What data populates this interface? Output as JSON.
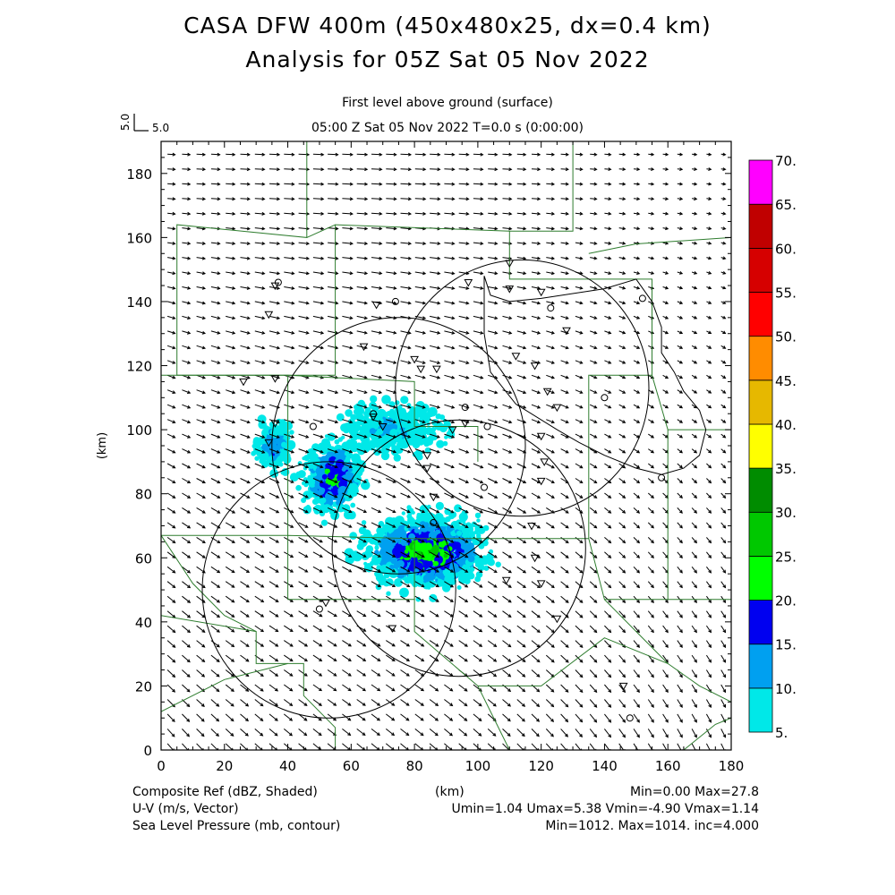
{
  "header": {
    "title_line1": "CASA DFW 400m (450x480x25, dx=0.4 km)",
    "title_line2": "Analysis for 05Z Sat 05 Nov 2022",
    "subtitle": "First level above ground (surface)",
    "timestamp": "05:00 Z Sat 05 Nov 2022    T=0.0 s (0:00:00)",
    "ref_vector_label": "5.0",
    "ref_vector_rotated_label": "5.0"
  },
  "footer": {
    "field1": "Composite Ref (dBZ, Shaded)",
    "field2": "U-V (m/s, Vector)",
    "field3": "Sea Level Pressure (mb, contour)",
    "xunit": "(km)",
    "stats1": "Min=0.00 Max=27.8",
    "stats2": "Umin=1.04 Umax=5.38 Vmin=-4.90 Vmax=1.14",
    "stats3": "Min=1012. Max=1014. inc=4.000"
  },
  "chart_data": {
    "type": "heatmap",
    "xlabel": "(km)",
    "ylabel": "(km)",
    "xlim": [
      0,
      180
    ],
    "ylim": [
      0,
      190
    ],
    "xticks": [
      "0",
      "20",
      "40",
      "60",
      "80",
      "100",
      "120",
      "140",
      "160",
      "180"
    ],
    "yticks": [
      "0",
      "20",
      "40",
      "60",
      "80",
      "100",
      "120",
      "140",
      "160",
      "180"
    ],
    "colorbar": {
      "labels": [
        "5.",
        "10.",
        "15.",
        "20.",
        "25.",
        "30.",
        "35.",
        "40.",
        "45.",
        "50.",
        "55.",
        "60.",
        "65.",
        "70."
      ],
      "colors": [
        "#00e8e8",
        "#00a0f0",
        "#0000f0",
        "#00ff00",
        "#00c800",
        "#008c00",
        "#ffff00",
        "#e6b800",
        "#ff8c00",
        "#ff0000",
        "#d60000",
        "#c00000",
        "#ff00ff"
      ]
    },
    "radar_rings": [
      {
        "cx": 75,
        "cy": 95,
        "r": 40
      },
      {
        "cx": 114,
        "cy": 113,
        "r": 40
      },
      {
        "cx": 53,
        "cy": 50,
        "r": 40
      },
      {
        "cx": 94,
        "cy": 63,
        "r": 40
      }
    ],
    "echo_clusters": [
      {
        "x": 54,
        "y": 85,
        "sx": 5,
        "sy": 6,
        "peak": 22
      },
      {
        "x": 84,
        "y": 62,
        "sx": 10,
        "sy": 6,
        "peak": 27.8
      },
      {
        "x": 36,
        "y": 95,
        "sx": 3,
        "sy": 4,
        "peak": 16
      },
      {
        "x": 73,
        "y": 100,
        "sx": 8,
        "sy": 4,
        "peak": 12
      }
    ],
    "wind_field": {
      "u_range": [
        1.04,
        5.38
      ],
      "v_range": [
        -4.9,
        1.14
      ]
    },
    "pressure_contour_mb": [
      1012,
      1014
    ],
    "stations": [
      [
        36,
        102
      ],
      [
        34,
        96
      ],
      [
        36,
        116
      ],
      [
        26,
        115
      ],
      [
        34,
        136
      ],
      [
        36,
        145
      ],
      [
        64,
        126
      ],
      [
        67,
        104
      ],
      [
        70,
        101
      ],
      [
        68,
        139
      ],
      [
        82,
        119
      ],
      [
        87,
        119
      ],
      [
        80,
        122
      ],
      [
        97,
        146
      ],
      [
        120,
        143
      ],
      [
        110,
        152
      ],
      [
        110,
        144
      ],
      [
        122,
        112
      ],
      [
        118,
        120
      ],
      [
        112,
        123
      ],
      [
        128,
        131
      ],
      [
        125,
        107
      ],
      [
        120,
        98
      ],
      [
        121,
        90
      ],
      [
        120,
        84
      ],
      [
        117,
        70
      ],
      [
        109,
        53
      ],
      [
        120,
        52
      ],
      [
        125,
        41
      ],
      [
        146,
        20
      ],
      [
        52,
        46
      ],
      [
        73,
        38
      ],
      [
        92,
        100
      ],
      [
        84,
        92
      ],
      [
        84,
        88
      ],
      [
        86,
        79
      ],
      [
        96,
        102
      ],
      [
        118,
        60
      ]
    ],
    "circle_markers": [
      [
        37,
        146
      ],
      [
        48,
        101
      ],
      [
        67,
        105
      ],
      [
        74,
        140
      ],
      [
        96,
        107
      ],
      [
        103,
        101
      ],
      [
        102,
        82
      ],
      [
        123,
        138
      ],
      [
        140,
        110
      ],
      [
        152,
        141
      ],
      [
        158,
        85
      ],
      [
        148,
        10
      ],
      [
        50,
        44
      ],
      [
        86,
        71
      ]
    ]
  }
}
